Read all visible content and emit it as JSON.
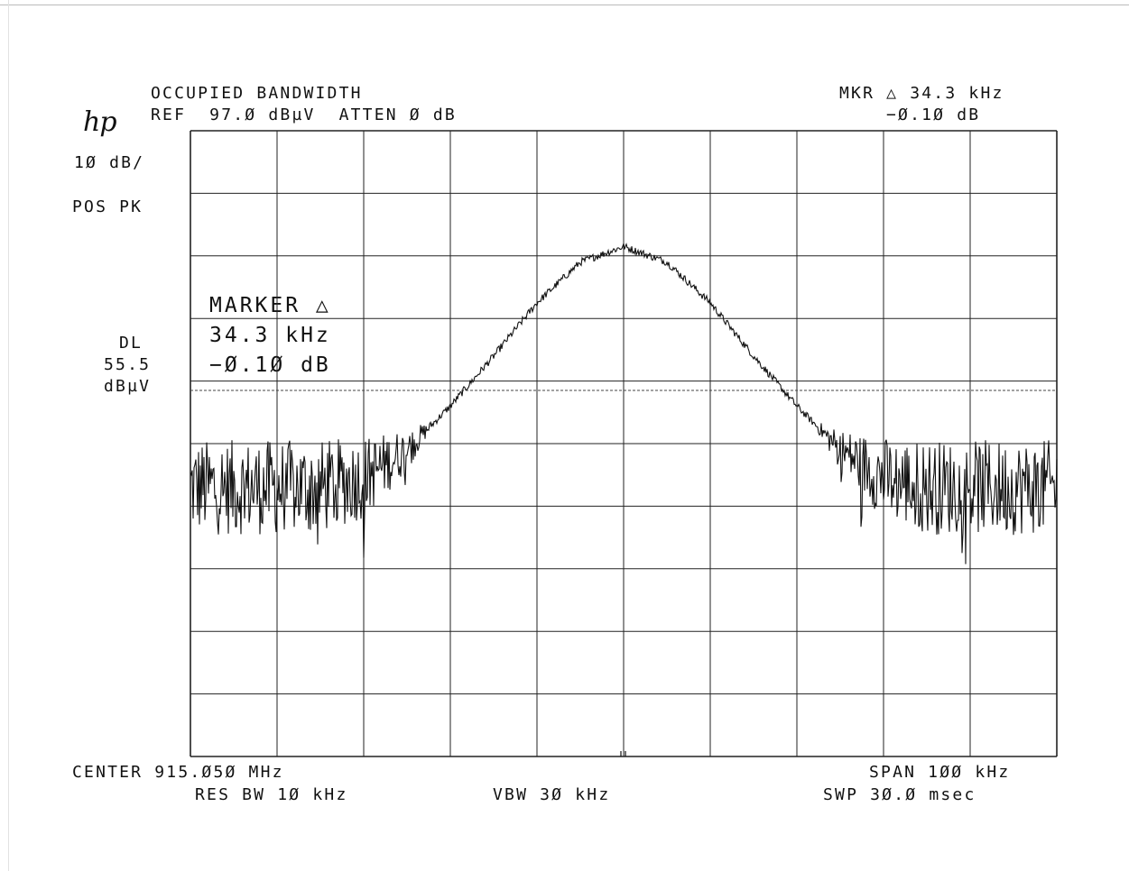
{
  "header": {
    "title": "OCCUPIED BANDWIDTH",
    "ref": "REF  97.Ø dBµV  ATTEN Ø dB",
    "mkr_line1": "MKR △ 34.3 kHz",
    "mkr_line2": "−Ø.1Ø dB",
    "logo": "hp"
  },
  "left_labels": {
    "scale": "1Ø dB/",
    "detector": "POS PK",
    "dl_label": "DL",
    "dl_value": "55.5",
    "dl_unit": "dBµV"
  },
  "marker_box": {
    "line1": "MARKER △",
    "line2": "34.3 kHz",
    "line3": "−Ø.1Ø dB"
  },
  "footer": {
    "center": "CENTER 915.Ø5Ø MHz",
    "span": "SPAN 1ØØ kHz",
    "rbw": "RES BW 1Ø kHz",
    "vbw": "VBW 3Ø kHz",
    "swp": "SWP 3Ø.Ø msec"
  },
  "chart_data": {
    "type": "line",
    "title": "OCCUPIED BANDWIDTH",
    "x_unit": "MHz",
    "y_unit": "dBµV",
    "center_mhz": 915.05,
    "span_khz": 100,
    "xlim_mhz": [
      915.0,
      915.1
    ],
    "ylim_dbuv": [
      -3.0,
      97.0
    ],
    "ref_level_dbuv": 97.0,
    "scale_db_per_div": 10,
    "display_line_dbuv": 55.5,
    "grid": true,
    "noise_floor_dbuv": 40,
    "peak": {
      "x_mhz": 915.05,
      "y_dbuv": 78.5
    },
    "series": [
      {
        "x": [
          915.0,
          915.005,
          915.01,
          915.015,
          915.02,
          915.025,
          915.03,
          915.035,
          915.04,
          915.045,
          915.05,
          915.055,
          915.06,
          915.065,
          915.07,
          915.075,
          915.08,
          915.085,
          915.09,
          915.095,
          915.1
        ],
        "y": [
          40,
          40,
          40,
          40,
          41.5,
          46,
          53,
          61,
          69.5,
          76,
          78.5,
          76,
          69.5,
          61,
          53,
          46,
          41.5,
          40,
          40,
          40,
          40
        ]
      }
    ],
    "marker_delta": {
      "freq_khz": 34.3,
      "amp_db": -0.1
    }
  }
}
